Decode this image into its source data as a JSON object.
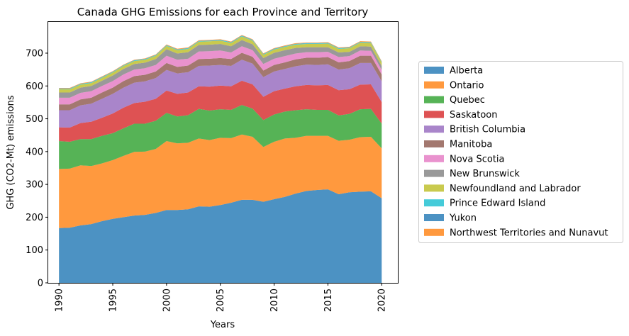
{
  "chart_data": {
    "type": "area",
    "stacked": true,
    "title": "Canada GHG Emissions for each Province and Territory",
    "xlabel": "Years",
    "ylabel": "GHG (CO2-Mt) emissions",
    "xlim": [
      1989,
      2021.5
    ],
    "ylim": [
      0,
      795
    ],
    "xticks": [
      1990,
      1995,
      2000,
      2005,
      2010,
      2015,
      2020
    ],
    "yticks": [
      0,
      100,
      200,
      300,
      400,
      500,
      600,
      700
    ],
    "grid": false,
    "legend_position": "right",
    "x": [
      1990,
      1991,
      1992,
      1993,
      1994,
      1995,
      1996,
      1997,
      1998,
      1999,
      2000,
      2001,
      2002,
      2003,
      2004,
      2005,
      2006,
      2007,
      2008,
      2009,
      2010,
      2011,
      2012,
      2013,
      2014,
      2015,
      2016,
      2017,
      2018,
      2019,
      2020
    ],
    "series": [
      {
        "name": "Alberta",
        "color": "#1f77b4",
        "values": [
          167,
          168,
          175,
          179,
          188,
          195,
          200,
          205,
          207,
          213,
          222,
          222,
          224,
          233,
          232,
          237,
          244,
          253,
          253,
          247,
          255,
          262,
          272,
          280,
          283,
          285,
          270,
          276,
          278,
          279,
          258
        ]
      },
      {
        "name": "Ontario",
        "color": "#ff7f0e",
        "values": [
          180,
          180,
          183,
          177,
          176,
          179,
          187,
          194,
          193,
          195,
          210,
          203,
          203,
          207,
          203,
          205,
          197,
          199,
          192,
          167,
          175,
          178,
          170,
          168,
          165,
          163,
          163,
          160,
          166,
          166,
          152
        ]
      },
      {
        "name": "Quebec",
        "color": "#2ca02c",
        "values": [
          85,
          82,
          80,
          82,
          84,
          82,
          84,
          86,
          85,
          86,
          86,
          82,
          84,
          90,
          90,
          87,
          86,
          90,
          86,
          82,
          83,
          82,
          84,
          81,
          79,
          79,
          77,
          79,
          85,
          85,
          75
        ]
      },
      {
        "name": "Saskatoon",
        "color": "#d62728",
        "values": [
          42,
          43,
          49,
          53,
          55,
          60,
          63,
          63,
          67,
          67,
          68,
          69,
          69,
          69,
          73,
          72,
          72,
          74,
          74,
          71,
          71,
          70,
          73,
          74,
          75,
          76,
          77,
          75,
          75,
          75,
          66
        ]
      },
      {
        "name": "British Columbia",
        "color": "#9467bd",
        "values": [
          52,
          53,
          54,
          55,
          58,
          60,
          61,
          62,
          62,
          63,
          63,
          62,
          62,
          62,
          64,
          63,
          62,
          64,
          63,
          60,
          60,
          60,
          61,
          62,
          62,
          63,
          63,
          64,
          66,
          65,
          63
        ]
      },
      {
        "name": "Manitoba",
        "color": "#8c564b",
        "values": [
          18,
          18,
          18,
          18,
          19,
          19,
          20,
          20,
          20,
          20,
          21,
          20,
          20,
          21,
          21,
          21,
          21,
          21,
          21,
          20,
          20,
          20,
          21,
          21,
          22,
          22,
          22,
          22,
          22,
          22,
          21
        ]
      },
      {
        "name": "Nova Scotia",
        "color": "#e377c2",
        "values": [
          20,
          20,
          20,
          20,
          20,
          20,
          20,
          20,
          20,
          20,
          22,
          22,
          21,
          23,
          23,
          23,
          20,
          20,
          20,
          20,
          19,
          19,
          18,
          17,
          17,
          16,
          16,
          15,
          16,
          15,
          14
        ]
      },
      {
        "name": "New Brunswick",
        "color": "#7f7f7f",
        "values": [
          16,
          16,
          16,
          16,
          16,
          17,
          17,
          17,
          17,
          18,
          20,
          19,
          20,
          20,
          20,
          20,
          19,
          19,
          18,
          18,
          18,
          18,
          17,
          15,
          15,
          14,
          14,
          13,
          13,
          13,
          12
        ]
      },
      {
        "name": "Newfoundland and Labrador",
        "color": "#bcbd22",
        "values": [
          10,
          10,
          9,
          9,
          9,
          9,
          9,
          9,
          9,
          10,
          10,
          10,
          10,
          10,
          10,
          10,
          10,
          11,
          11,
          10,
          10,
          10,
          10,
          10,
          10,
          11,
          11,
          11,
          11,
          11,
          10
        ]
      },
      {
        "name": "Prince Edward Island",
        "color": "#17becf",
        "values": [
          2,
          2,
          2,
          2,
          2,
          2,
          2,
          2,
          2,
          2,
          2,
          2,
          2,
          2,
          2,
          2,
          2,
          2,
          2,
          2,
          2,
          2,
          2,
          2,
          2,
          2,
          2,
          2,
          2,
          2,
          2
        ]
      },
      {
        "name": "Yukon",
        "color": "#1f77b4",
        "values": [
          0.6,
          0.6,
          0.6,
          0.6,
          0.6,
          0.6,
          0.6,
          0.6,
          0.6,
          0.6,
          0.6,
          0.6,
          0.6,
          0.6,
          0.6,
          0.6,
          0.6,
          0.6,
          0.6,
          0.6,
          0.6,
          0.6,
          0.6,
          0.6,
          0.6,
          0.6,
          0.6,
          0.6,
          0.6,
          0.6,
          0.6
        ]
      },
      {
        "name": "Northwest Territories and Nunavut",
        "color": "#ff7f0e",
        "values": [
          1.5,
          1.5,
          1.5,
          1.5,
          1.5,
          1.5,
          1.5,
          1.5,
          1.5,
          1.5,
          1.8,
          1.8,
          1.8,
          1.8,
          1.8,
          1.8,
          1.8,
          1.8,
          1.8,
          1.8,
          1.8,
          1.8,
          1.8,
          1.8,
          1.8,
          1.8,
          1.8,
          1.8,
          1.8,
          1.8,
          1.8
        ]
      }
    ]
  }
}
